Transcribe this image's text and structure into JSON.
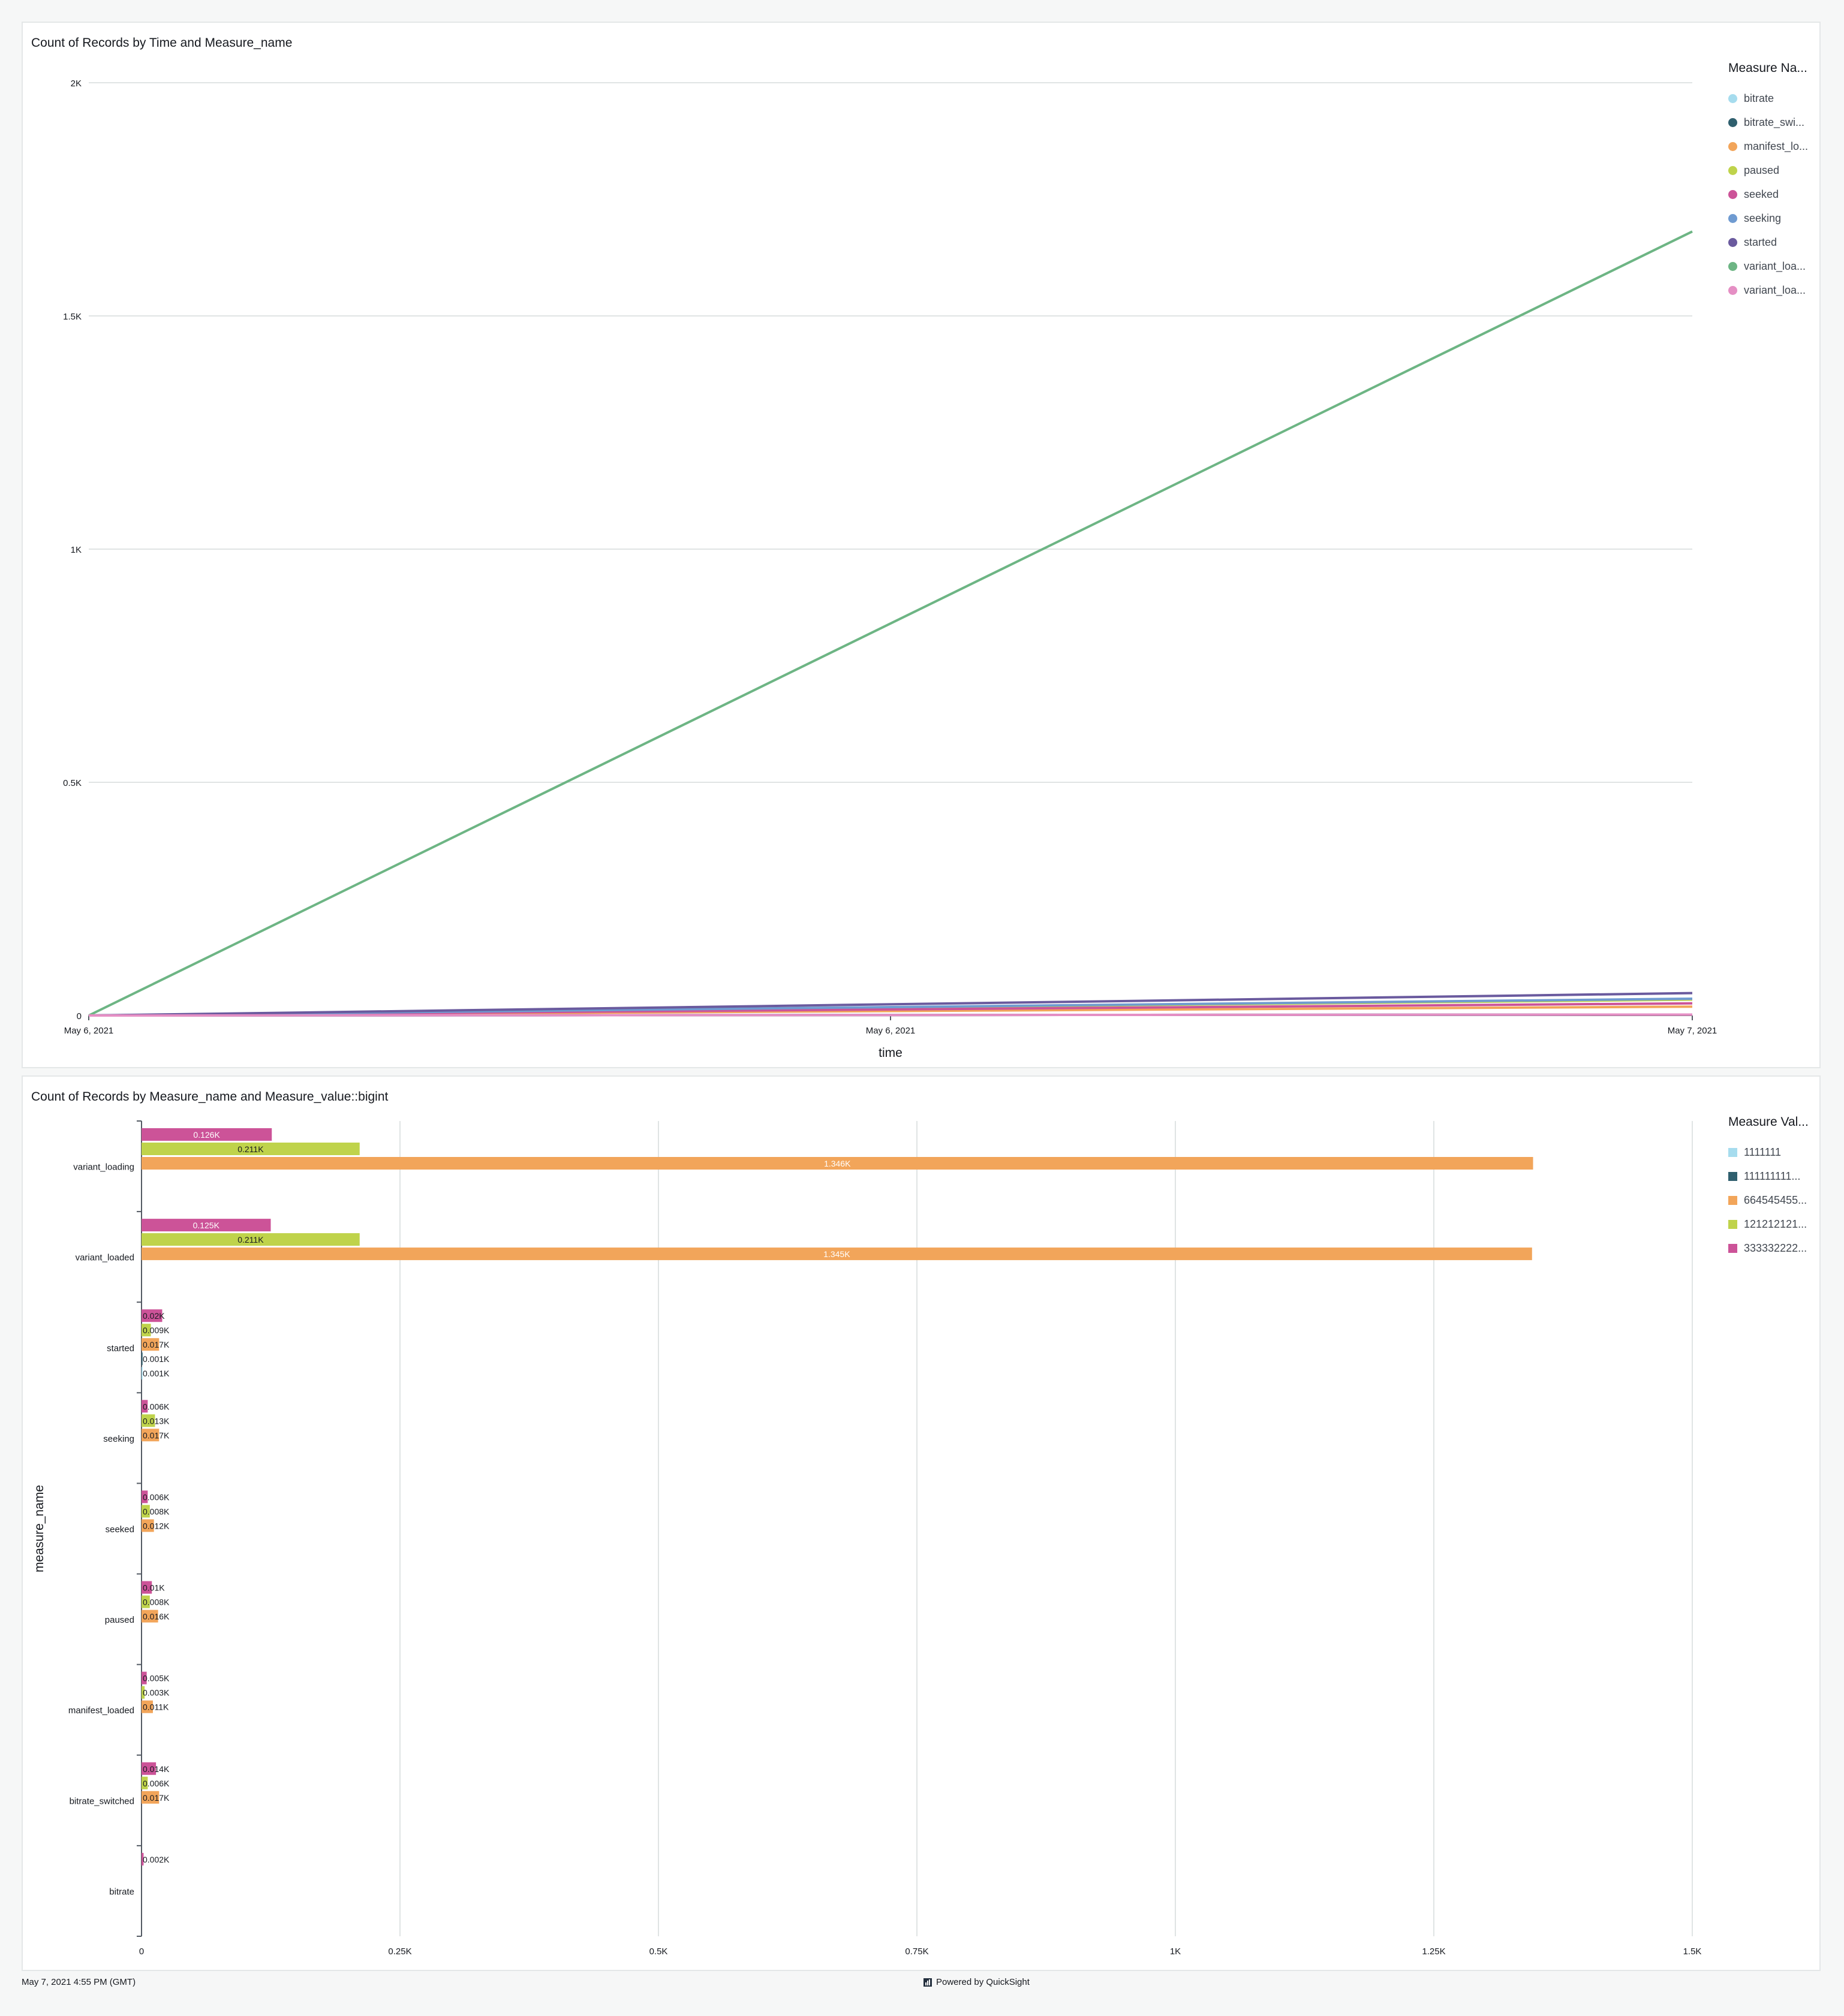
{
  "footer": {
    "timestamp": "May 7, 2021 4:55 PM (GMT)",
    "powered_by": "Powered by QuickSight"
  },
  "chart_data": [
    {
      "type": "line",
      "title": "Count of Records by Time and Measure_name",
      "xlabel": "time",
      "ylabel": "",
      "x_tick_labels": [
        "May 6, 2021",
        "May 6, 2021",
        "May 7, 2021"
      ],
      "x": [
        "May 6, 2021",
        "May 7, 2021"
      ],
      "y_ticks": [
        0,
        500,
        1000,
        1500,
        2000
      ],
      "y_tick_labels": [
        "0",
        "0.5K",
        "1K",
        "1.5K",
        "2K"
      ],
      "ylim": [
        0,
        2000
      ],
      "grid": true,
      "legend_title": "Measure Na...",
      "legend_position": "right",
      "series": [
        {
          "name": "bitrate",
          "label": "bitrate",
          "color": "#a6dcee",
          "values": [
            0,
            2
          ]
        },
        {
          "name": "bitrate_switched",
          "label": "bitrate_swi...",
          "color": "#2f5f6e",
          "values": [
            0,
            2
          ]
        },
        {
          "name": "manifest_loaded",
          "label": "manifest_lo...",
          "color": "#f2a55a",
          "values": [
            0,
            19
          ]
        },
        {
          "name": "paused",
          "label": "paused",
          "color": "#bfd34b",
          "values": [
            0,
            34
          ]
        },
        {
          "name": "seeked",
          "label": "seeked",
          "color": "#cc5398",
          "values": [
            0,
            26
          ]
        },
        {
          "name": "seeking",
          "label": "seeking",
          "color": "#6f9bd1",
          "values": [
            0,
            36
          ]
        },
        {
          "name": "started",
          "label": "started",
          "color": "#6a5a9e",
          "values": [
            0,
            48
          ]
        },
        {
          "name": "variant_loaded",
          "label": "variant_loa...",
          "color": "#6db584",
          "values": [
            0,
            1681
          ]
        },
        {
          "name": "variant_loading",
          "label": "variant_loa...",
          "color": "#e58fc4",
          "values": [
            0,
            2
          ]
        }
      ]
    },
    {
      "type": "bar",
      "orientation": "horizontal",
      "title": "Count of Records by Measure_name and Measure_value::bigint",
      "ylabel": "measure_name",
      "xlabel": "",
      "categories": [
        "variant_loading",
        "variant_loaded",
        "started",
        "seeking",
        "seeked",
        "paused",
        "manifest_loaded",
        "bitrate_switched",
        "bitrate"
      ],
      "xlim": [
        0,
        1500
      ],
      "x_ticks": [
        0,
        250,
        500,
        750,
        1000,
        1250,
        1500
      ],
      "x_tick_labels": [
        "0",
        "0.25K",
        "0.5K",
        "0.75K",
        "1K",
        "1.25K",
        "1.5K"
      ],
      "grid": true,
      "legend_title": "Measure Val...",
      "legend_position": "right",
      "series": [
        {
          "name": "1111111",
          "label": "1111111",
          "color": "#a6dcee",
          "values": [
            null,
            null,
            1,
            null,
            null,
            null,
            null,
            null,
            null
          ]
        },
        {
          "name": "111111111...",
          "label": "111111111...",
          "color": "#2f5f6e",
          "values": [
            null,
            null,
            1,
            null,
            null,
            null,
            null,
            null,
            null
          ]
        },
        {
          "name": "664545455...",
          "label": "664545455...",
          "color": "#f2a55a",
          "values": [
            1346,
            1345,
            17,
            17,
            12,
            16,
            11,
            17,
            null
          ]
        },
        {
          "name": "121212121...",
          "label": "121212121...",
          "color": "#bfd34b",
          "values": [
            211,
            211,
            9,
            13,
            8,
            8,
            3,
            6,
            null
          ]
        },
        {
          "name": "333332222...",
          "label": "333332222...",
          "color": "#cc5398",
          "values": [
            126,
            125,
            20,
            6,
            6,
            10,
            5,
            14,
            2
          ]
        }
      ],
      "bar_labels": [
        [
          "0.126K",
          "0.211K",
          "1.346K"
        ],
        [
          "0.125K",
          "0.211K",
          "1.345K"
        ],
        [
          "0.02K",
          "0.009K",
          "0.017K",
          "0.001K",
          "0.001K"
        ],
        [
          "0.006K",
          "0.013K",
          "0.017K"
        ],
        [
          "0.006K",
          "0.008K",
          "0.012K"
        ],
        [
          "0.01K",
          "0.008K",
          "0.016K"
        ],
        [
          "0.005K",
          "0.003K",
          "0.011K"
        ],
        [
          "0.014K",
          "0.006K",
          "0.017K"
        ],
        [
          "0.002K"
        ]
      ]
    }
  ]
}
